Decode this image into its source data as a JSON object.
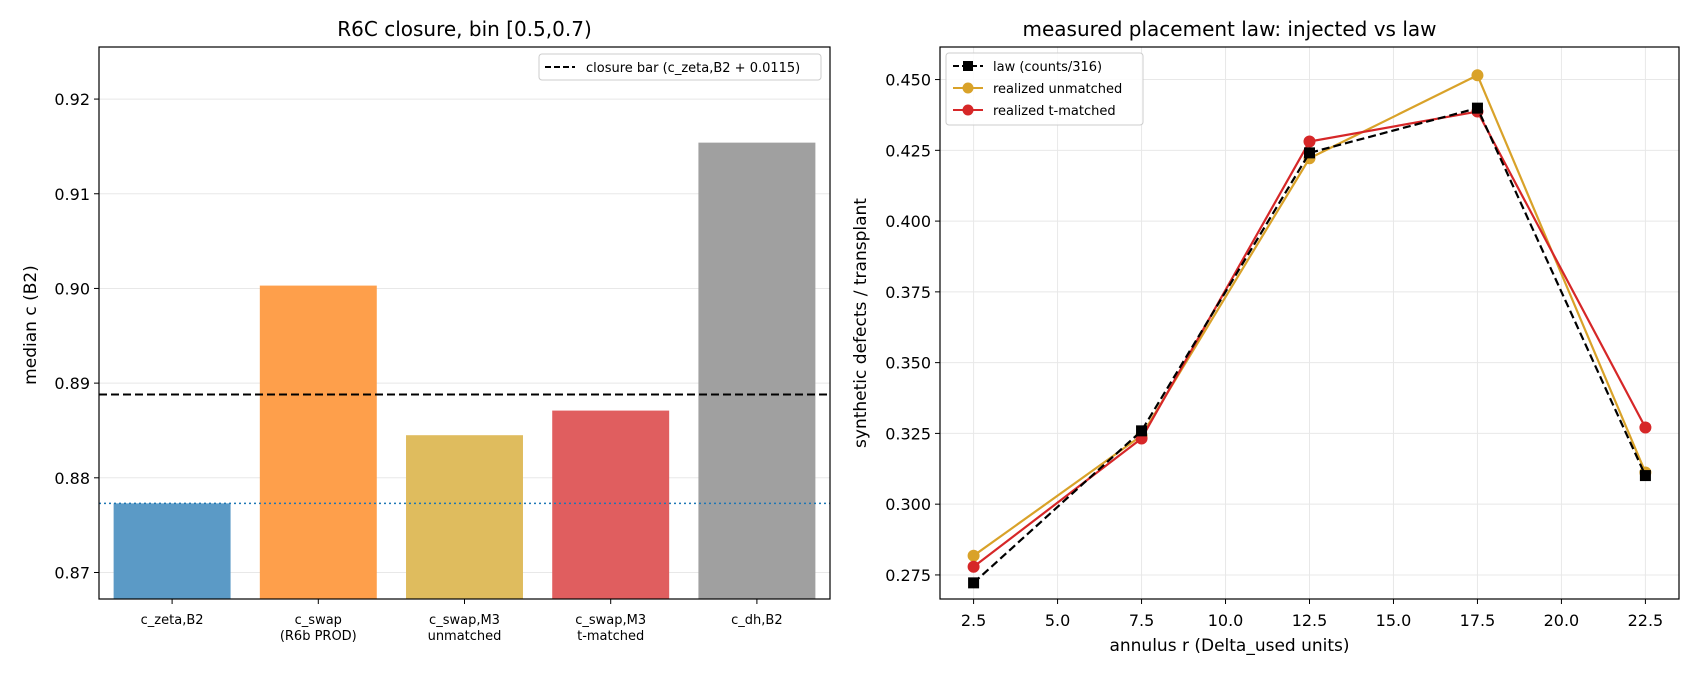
{
  "chart_data": [
    {
      "type": "bar",
      "title": "R6C closure, bin [0.5,0.7)",
      "xlabel": "",
      "ylabel": "median c (B2)",
      "ylim": [
        0.8672,
        0.9255
      ],
      "yticks": [
        "0.87",
        "0.88",
        "0.89",
        "0.90",
        "0.91",
        "0.92"
      ],
      "ytick_values": [
        0.87,
        0.88,
        0.89,
        0.9,
        0.91,
        0.92
      ],
      "categories": [
        [
          "c_zeta,B2"
        ],
        [
          "c_swap",
          "(R6b PROD)"
        ],
        [
          "c_swap,M3",
          "unmatched"
        ],
        [
          "c_swap,M3",
          "t-matched"
        ],
        [
          "c_dh,B2"
        ]
      ],
      "values": [
        0.8773,
        0.9003,
        0.8845,
        0.8871,
        0.9154
      ],
      "colors": [
        "#5b9ac6",
        "#fe9f4b",
        "#dfbc5e",
        "#e05e5f",
        "#a0a0a0"
      ],
      "reference_lines": [
        {
          "label": "closure bar (c_zeta,B2 + 0.0115)",
          "value": 0.8888,
          "style": "dashed",
          "color": "#000000"
        },
        {
          "label": "",
          "value": 0.8773,
          "style": "dotted",
          "color": "#1f77b4"
        }
      ],
      "legend": {
        "placement": "top-right"
      },
      "grid": true
    },
    {
      "type": "line",
      "title": "measured placement law: injected vs law",
      "xlabel": "annulus r (Delta_used units)",
      "ylabel": "synthetic defects / transplant",
      "xlim": [
        1.5,
        23.5
      ],
      "ylim": [
        0.2665,
        0.4615
      ],
      "xticks": [
        "2.5",
        "5.0",
        "7.5",
        "10.0",
        "12.5",
        "15.0",
        "17.5",
        "20.0",
        "22.5"
      ],
      "xtick_values": [
        2.5,
        5.0,
        7.5,
        10.0,
        12.5,
        15.0,
        17.5,
        20.0,
        22.5
      ],
      "yticks": [
        "0.275",
        "0.300",
        "0.325",
        "0.350",
        "0.375",
        "0.400",
        "0.425",
        "0.450"
      ],
      "ytick_values": [
        0.275,
        0.3,
        0.325,
        0.35,
        0.375,
        0.4,
        0.425,
        0.45
      ],
      "x": [
        2.5,
        7.5,
        12.5,
        17.5,
        22.5
      ],
      "series": [
        {
          "name": "law (counts/316)",
          "values": [
            0.2722,
            0.3259,
            0.4241,
            0.4399,
            0.3101
          ],
          "color": "#000000",
          "style": "dashed",
          "marker": "square"
        },
        {
          "name": "realized unmatched",
          "values": [
            0.2818,
            0.3242,
            0.4222,
            0.4515,
            0.3112
          ],
          "color": "#d9a229",
          "style": "solid",
          "marker": "circle"
        },
        {
          "name": "realized t-matched",
          "values": [
            0.2779,
            0.3232,
            0.4281,
            0.4387,
            0.3271
          ],
          "color": "#d62728",
          "style": "solid",
          "marker": "circle"
        }
      ],
      "legend": {
        "placement": "top-left"
      },
      "grid": true
    }
  ]
}
